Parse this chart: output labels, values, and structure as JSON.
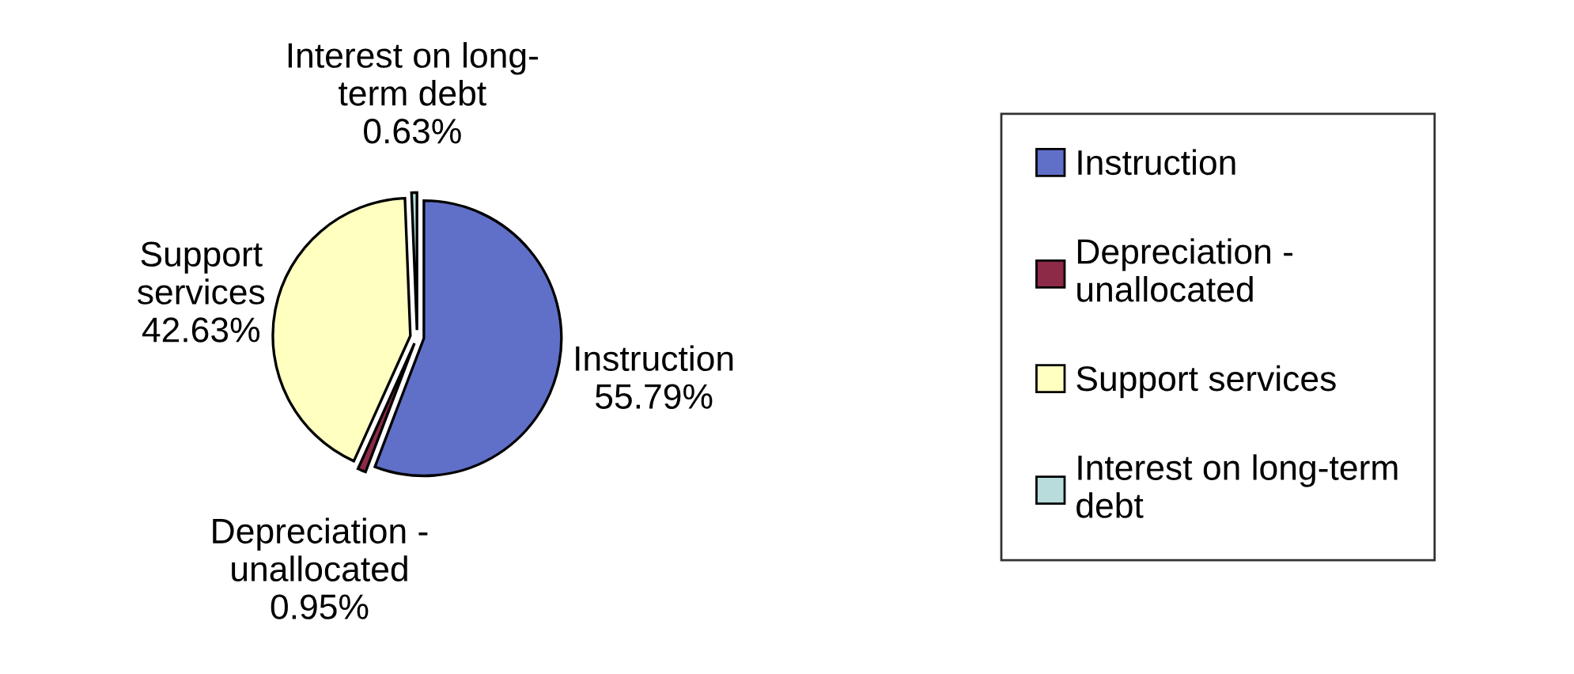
{
  "chart_data": {
    "type": "pie",
    "categories": [
      "Instruction",
      "Depreciation -\nunallocated",
      "Support services",
      "Interest on long-term\ndebt"
    ],
    "values": [
      55.79,
      0.95,
      42.63,
      0.63
    ],
    "colors": [
      "#6070c8",
      "#8c2a48",
      "#ffffc0",
      "#b8dcdc"
    ],
    "value_labels": [
      "Instruction\n55.79%",
      "Depreciation -\nunallocated\n0.95%",
      "Support\nservices\n42.63%",
      "Interest on long-\nterm debt\n0.63%"
    ],
    "legend": "right"
  }
}
